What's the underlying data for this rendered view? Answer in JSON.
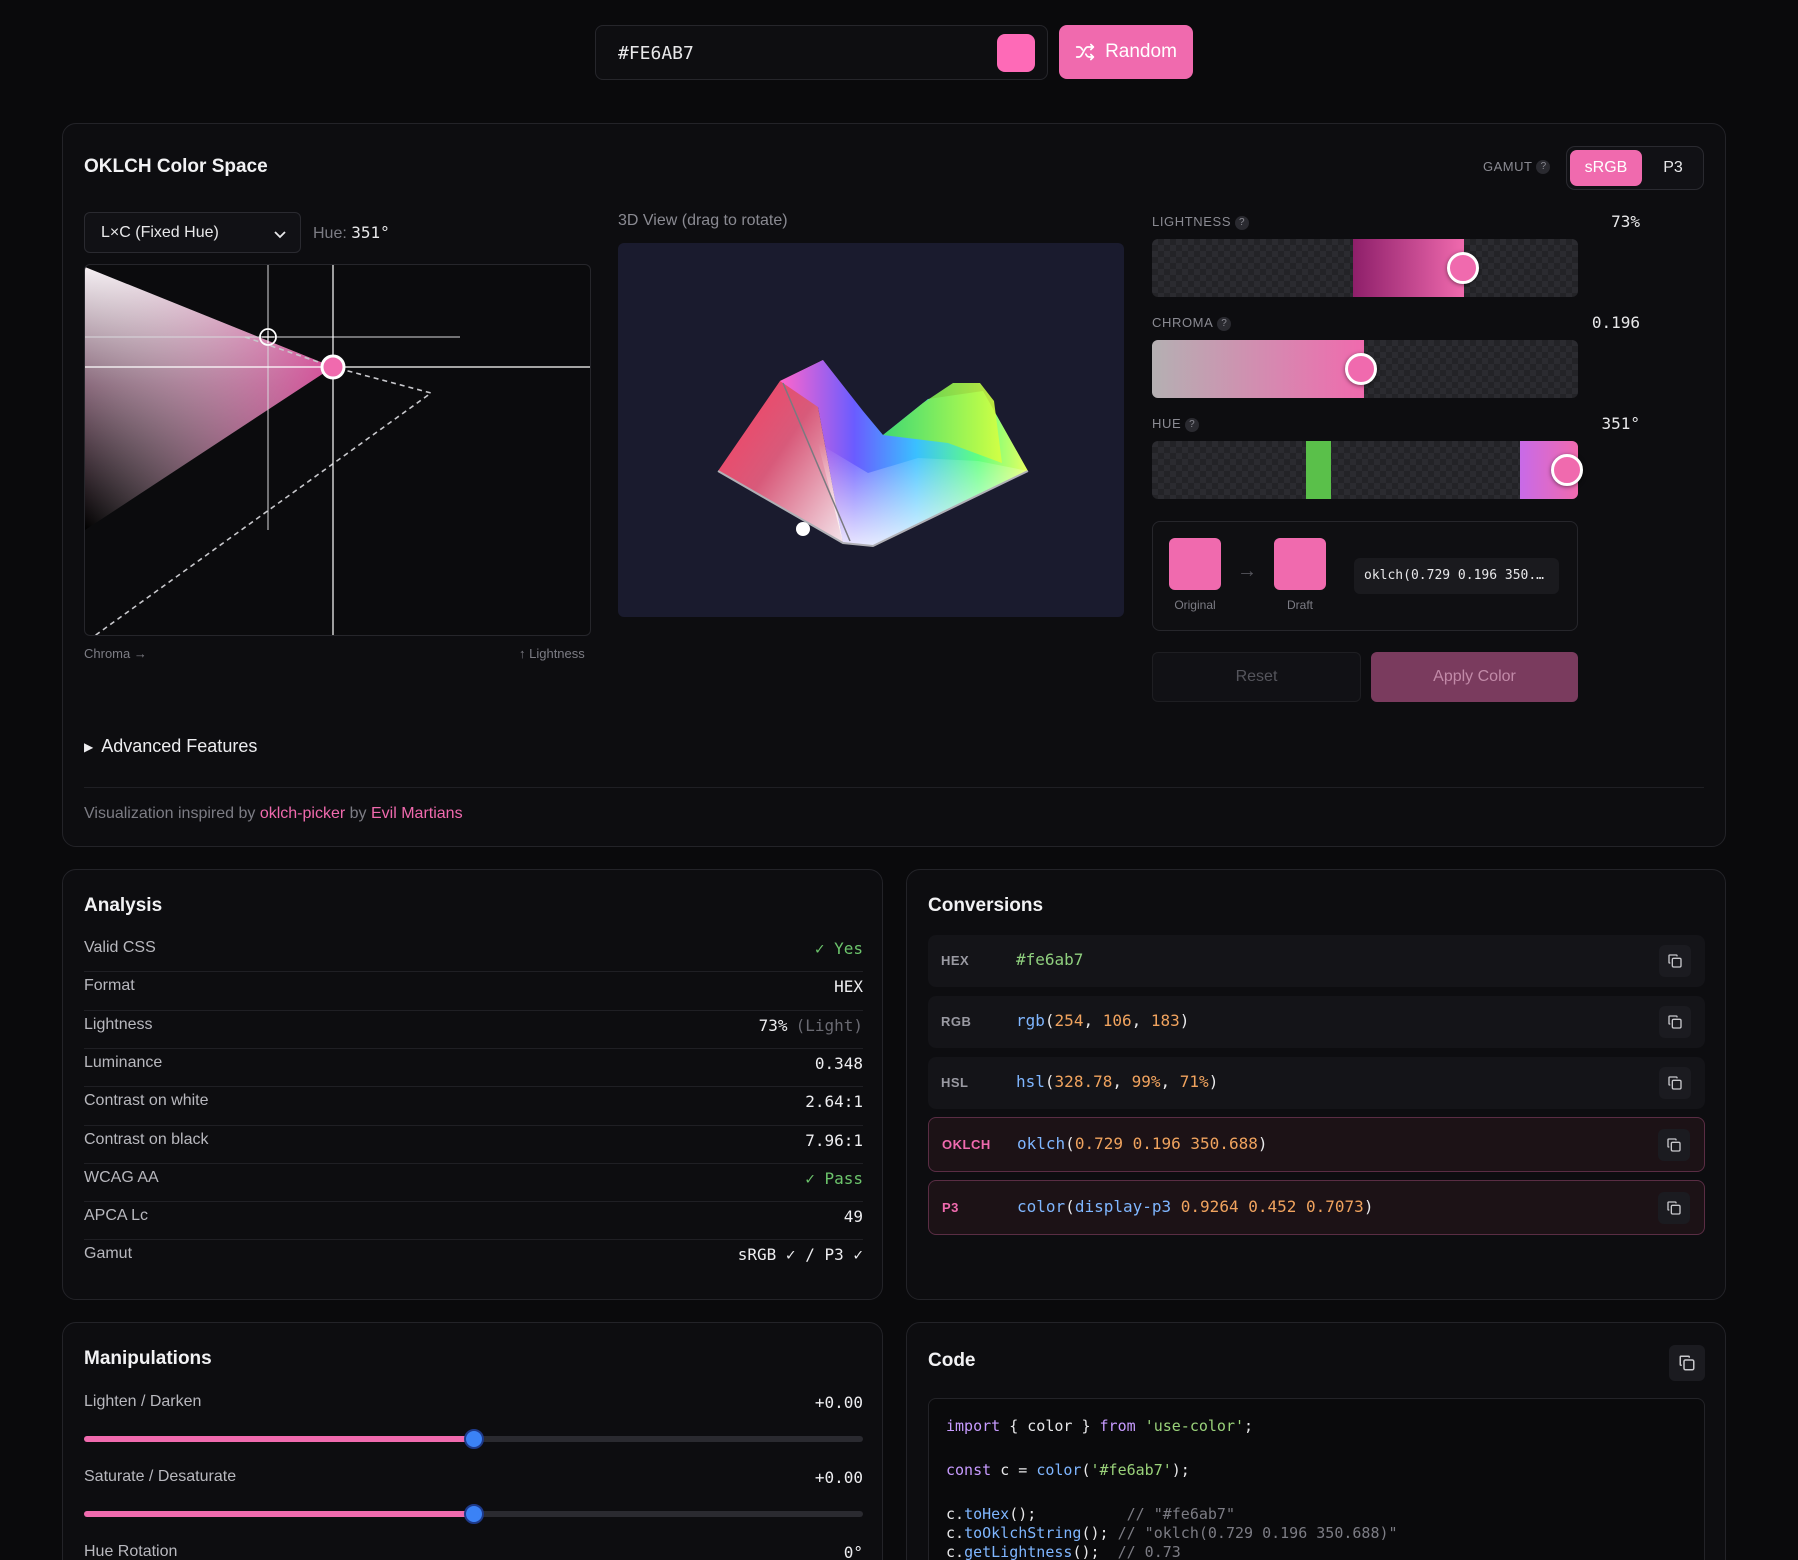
{
  "topbar": {
    "color_value": "#FE6AB7",
    "swatch_color": "#fe6ab7",
    "random_label": "Random"
  },
  "oklch_card": {
    "title": "OKLCH Color Space",
    "gamut_label": "GAMUT",
    "gamut_options": [
      "sRGB",
      "P3"
    ],
    "gamut_selected": "sRGB",
    "mode_select": "L×C (Fixed Hue)",
    "hue_label": "Hue:",
    "hue_value": "351°",
    "chroma_axis": "Chroma →",
    "lightness_axis": "↑ Lightness",
    "view3d_label": "3D View (drag to rotate)",
    "lightness": {
      "label": "LIGHTNESS",
      "value": "73%",
      "fraction": 0.73
    },
    "chroma": {
      "label": "CHROMA",
      "value": "0.196",
      "fraction": 0.49
    },
    "hue": {
      "label": "HUE",
      "value": "351°",
      "fraction": 0.975
    },
    "original_label": "Original",
    "draft_label": "Draft",
    "arrow": "→",
    "oklch_preview": "oklch(0.729 0.196 350.…",
    "reset_label": "Reset",
    "apply_label": "Apply Color",
    "advanced_label": "Advanced Features",
    "footer_prefix": "Visualization inspired by",
    "footer_link1": "oklch-picker",
    "footer_by": "by",
    "footer_link2": "Evil Martians"
  },
  "analysis": {
    "title": "Analysis",
    "rows": [
      {
        "label": "Valid CSS",
        "value": "✓ Yes"
      },
      {
        "label": "Format",
        "value": "HEX"
      },
      {
        "label": "Lightness",
        "value": "73%",
        "extra": "(Light)"
      },
      {
        "label": "Luminance",
        "value": "0.348"
      },
      {
        "label": "Contrast on white",
        "value": "2.64:1"
      },
      {
        "label": "Contrast on black",
        "value": "7.96:1"
      },
      {
        "label": "WCAG AA",
        "value": "✓ Pass"
      },
      {
        "label": "APCA Lc",
        "value": "49"
      },
      {
        "label": "Gamut",
        "value": "sRGB ✓ / P3 ✓"
      }
    ]
  },
  "conversions": {
    "title": "Conversions",
    "items": [
      {
        "tag": "HEX",
        "text": "#fe6ab7"
      },
      {
        "tag": "RGB",
        "fn": "rgb",
        "args": [
          "254",
          "106",
          "183"
        ]
      },
      {
        "tag": "HSL",
        "fn": "hsl",
        "args": [
          "328.78",
          "99%",
          "71%"
        ]
      },
      {
        "tag": "OKLCH",
        "fn": "oklch",
        "args": [
          "0.729 0.196 350.688"
        ]
      },
      {
        "tag": "P3",
        "fn": "color",
        "space": "display-p3",
        "args": [
          "0.9264 0.452 0.7073"
        ]
      }
    ]
  },
  "manipulations": {
    "title": "Manipulations",
    "sliders": [
      {
        "label": "Lighten / Darken",
        "value": "+0.00",
        "fraction": 0.5
      },
      {
        "label": "Saturate / Desaturate",
        "value": "+0.00",
        "fraction": 0.5
      },
      {
        "label": "Hue Rotation",
        "value": "0°"
      }
    ]
  },
  "code": {
    "title": "Code",
    "line1_import": "import",
    "line1_brace": "{ color }",
    "line1_from": "from",
    "line1_mod": "'use-color'",
    "line1_semi": ";",
    "line2_const": "const",
    "line2_c": "c =",
    "line2_fn": "color",
    "line2_arg": "'#fe6ab7'",
    "line3_obj": "c.",
    "line3_fn": "toHex",
    "line3_rest": "();",
    "line3_cmt": "// \"#fe6ab7\"",
    "line4_obj": "c.",
    "line4_fn": "toOklchString",
    "line4_rest": "();",
    "line4_cmt": "// \"oklch(0.729 0.196 350.688)\"",
    "line5_obj": "c.",
    "line5_fn": "getLightness",
    "line5_rest": "();",
    "line5_cmt": "// 0.73"
  },
  "colors": {
    "accent": "#f06aae",
    "selected": "#fe6ab7"
  }
}
